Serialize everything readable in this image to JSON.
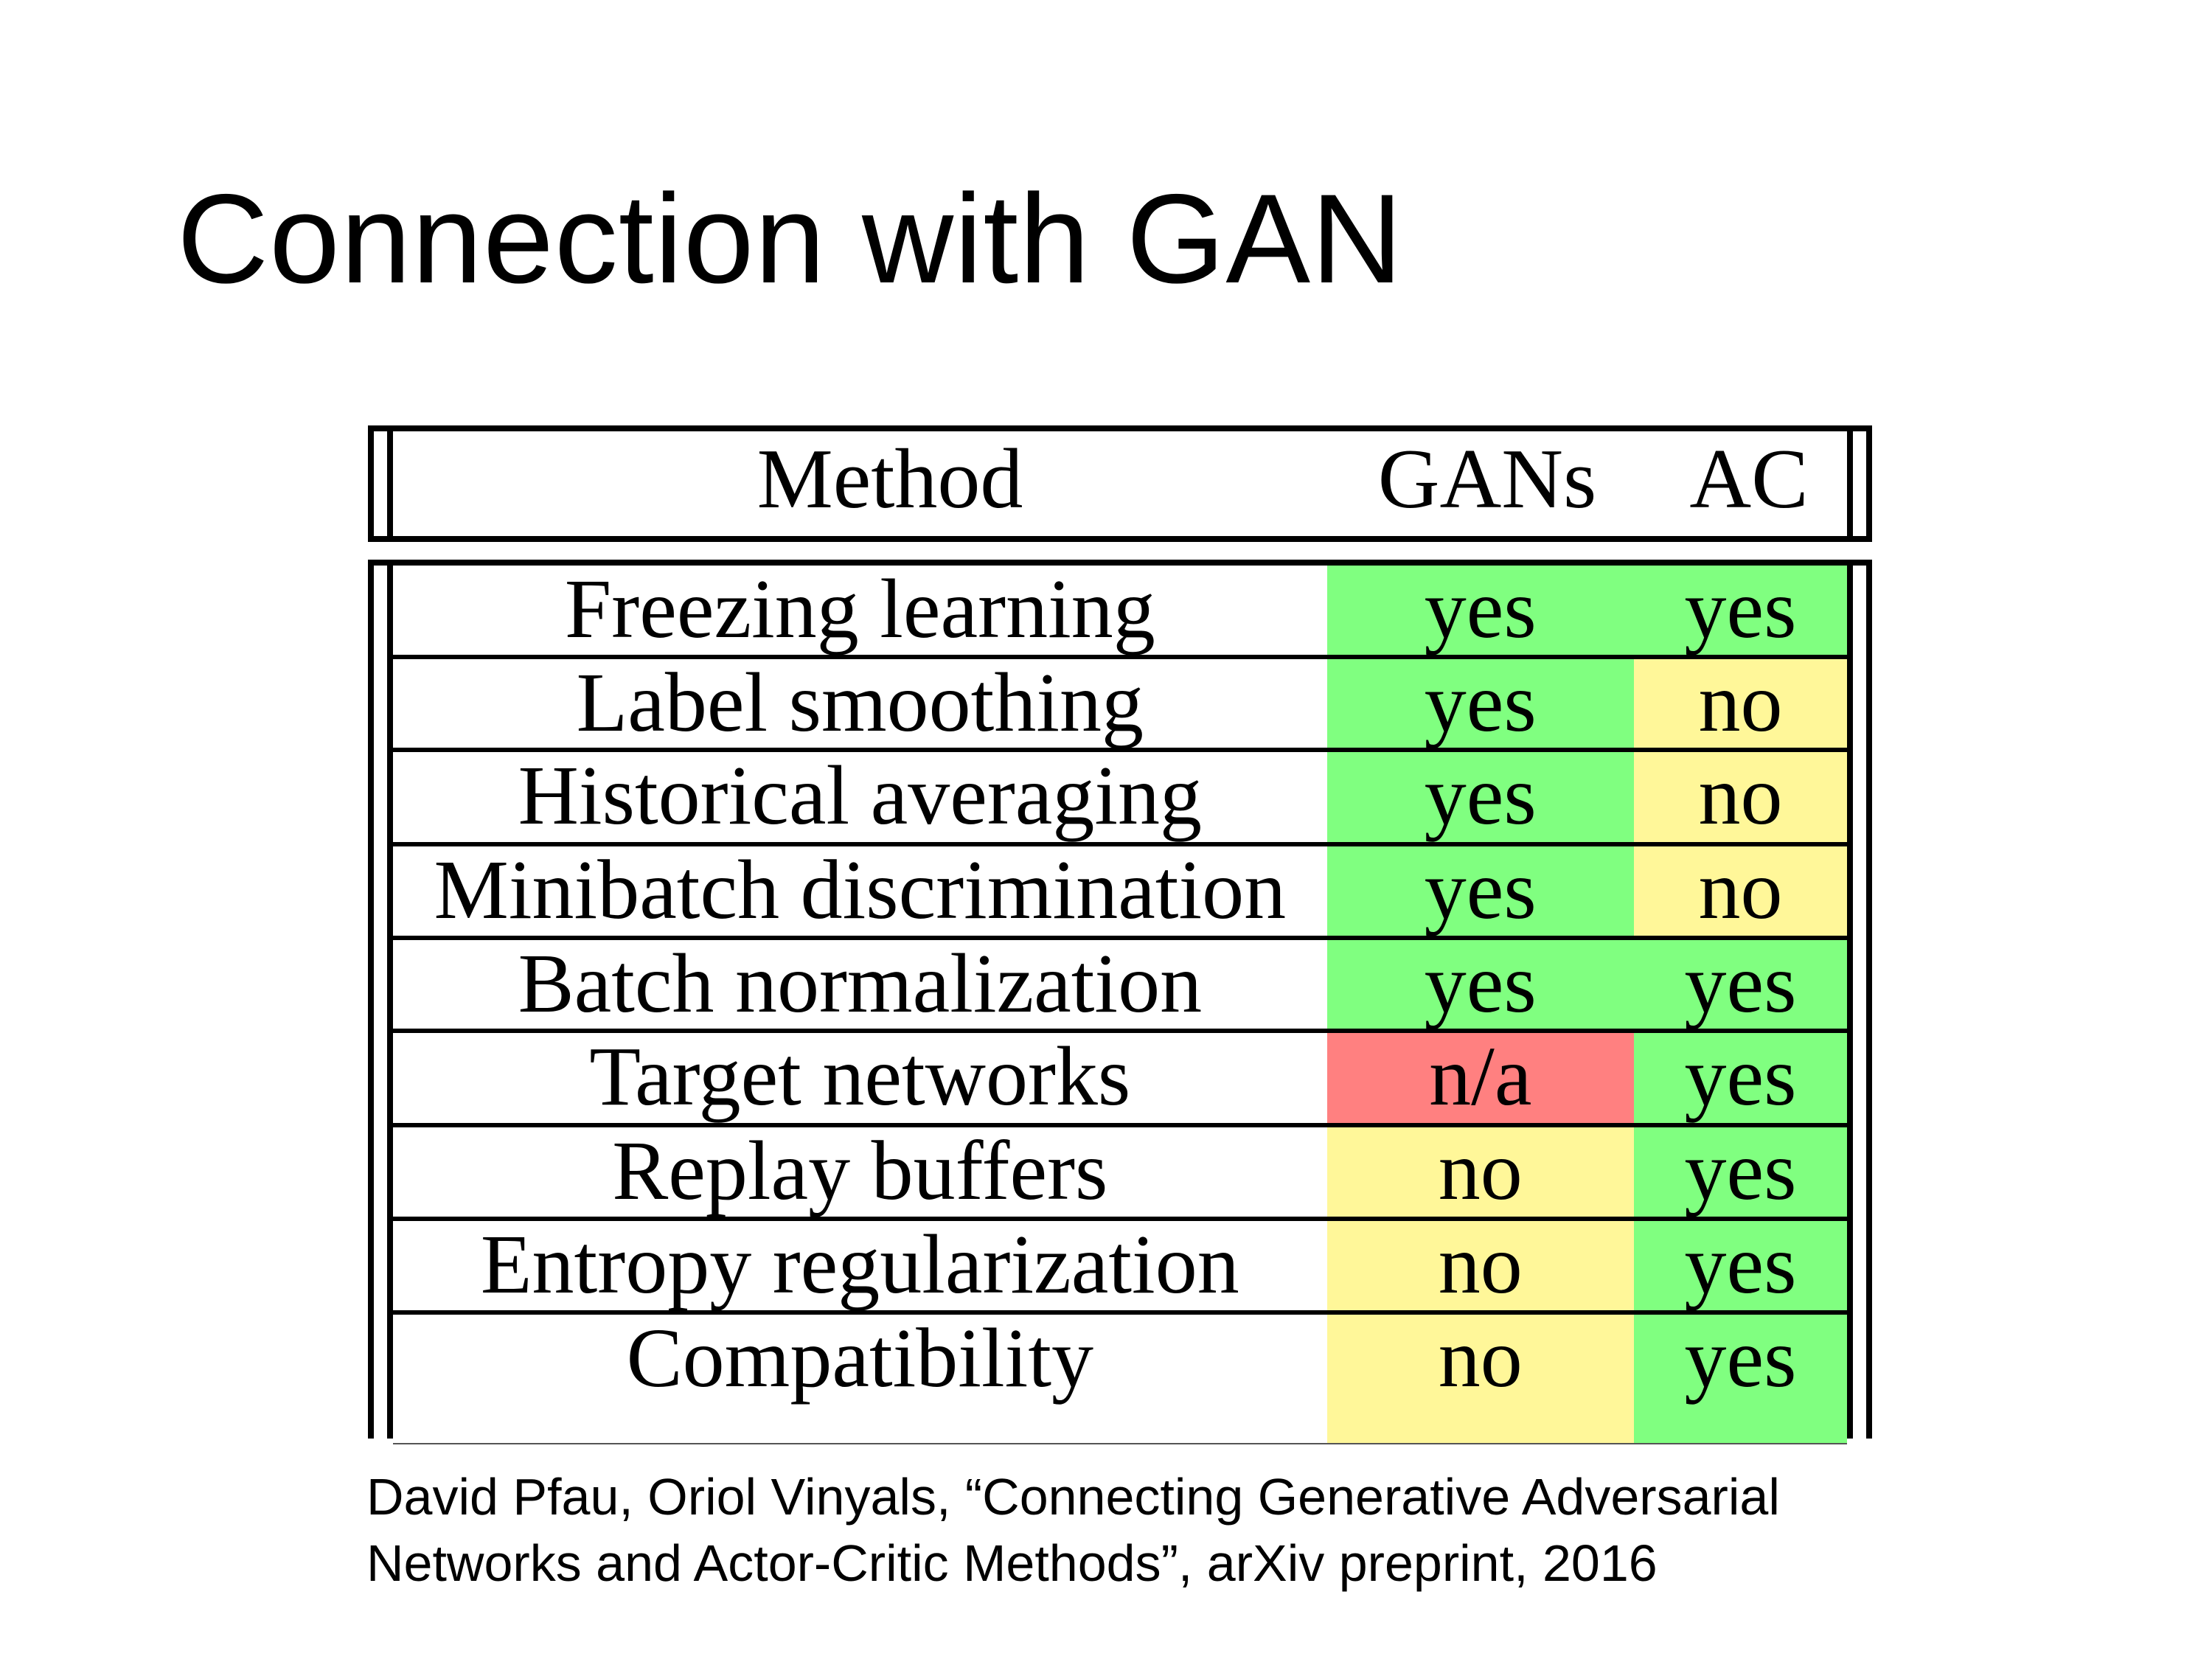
{
  "slide": {
    "title": "Connection with GAN",
    "citation_line1": "David Pfau, Oriol Vinyals, “Connecting Generative Adversarial",
    "citation_line2": "Networks and Actor-Critic Methods”, arXiv preprint, 2016"
  },
  "table": {
    "headers": [
      "Method",
      "GANs",
      "AC"
    ],
    "colors": {
      "yes": "#80ff80",
      "no": "#fff799",
      "n/a": "#ff8080"
    },
    "rows": [
      {
        "method": "Freezing learning",
        "gans": "yes",
        "ac": "yes"
      },
      {
        "method": "Label smoothing",
        "gans": "yes",
        "ac": "no"
      },
      {
        "method": "Historical averaging",
        "gans": "yes",
        "ac": "no"
      },
      {
        "method": "Minibatch discrimination",
        "gans": "yes",
        "ac": "no"
      },
      {
        "method": "Batch normalization",
        "gans": "yes",
        "ac": "yes"
      },
      {
        "method": "Target networks",
        "gans": "n/a",
        "ac": "yes"
      },
      {
        "method": "Replay buffers",
        "gans": "no",
        "ac": "yes"
      },
      {
        "method": "Entropy regularization",
        "gans": "no",
        "ac": "yes"
      },
      {
        "method": "Compatibility",
        "gans": "no",
        "ac": "yes"
      }
    ]
  }
}
